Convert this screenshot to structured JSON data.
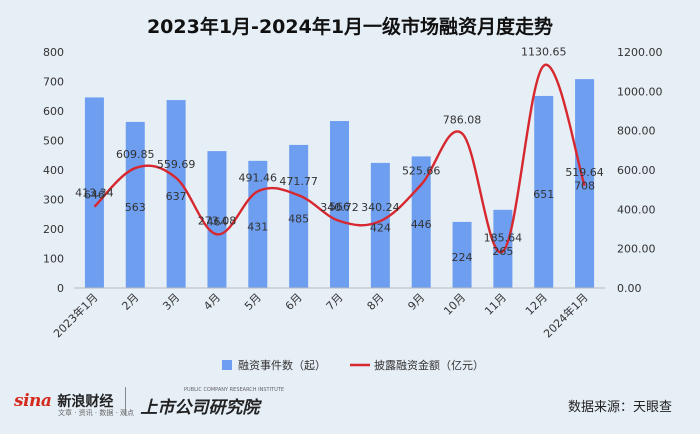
{
  "chart_data": {
    "type": "bar+line",
    "title": "2023年1月-2024年1月一级市场融资月度走势",
    "categories": [
      "2023年1月",
      "2月",
      "3月",
      "4月",
      "5月",
      "6月",
      "7月",
      "8月",
      "9月",
      "10月",
      "11月",
      "12月",
      "2024年1月"
    ],
    "series": [
      {
        "name": "融资事件数（起）",
        "type": "bar",
        "axis": "left",
        "color": "#6e9ef0",
        "values": [
          646,
          563,
          637,
          464,
          431,
          485,
          566,
          424,
          446,
          224,
          265,
          651,
          708
        ],
        "labels": [
          "646",
          "563",
          "637",
          "464",
          "431",
          "485",
          "566",
          "424",
          "446",
          "224",
          "265",
          "651",
          "708"
        ]
      },
      {
        "name": "披露融资金额（亿元）",
        "type": "line",
        "axis": "right",
        "color": "#d7282f",
        "values": [
          413.34,
          609.85,
          559.69,
          273.08,
          491.46,
          471.77,
          340.72,
          340.24,
          525.66,
          786.08,
          185.64,
          1130.65,
          519.64
        ],
        "labels": [
          "413.34",
          "609.85",
          "559.69",
          "273.08",
          "491.46",
          "471.77",
          "340.72",
          "340.24",
          "525.66",
          "786.08",
          "185.64",
          "1130.65",
          "519.64"
        ]
      }
    ],
    "y_left": {
      "min": 0,
      "max": 800,
      "step": 100,
      "ticks": [
        "0",
        "100",
        "200",
        "300",
        "400",
        "500",
        "600",
        "700",
        "800"
      ]
    },
    "y_right": {
      "min": 0,
      "max": 1200,
      "step": 200,
      "ticks": [
        "0.00",
        "200.00",
        "400.00",
        "600.00",
        "800.00",
        "1000.00",
        "1200.00"
      ]
    },
    "grid": false,
    "legend_position": "bottom"
  },
  "footer": {
    "sina_logo": "sina",
    "sina_name": "新浪财经",
    "sina_tagline": "文章 · 资讯 · 数据 · 观点",
    "institute_name": "上市公司研究院",
    "institute_en": "PUBLIC COMPANY RESEARCH INSTITUTE",
    "source": "数据来源：天眼查"
  }
}
